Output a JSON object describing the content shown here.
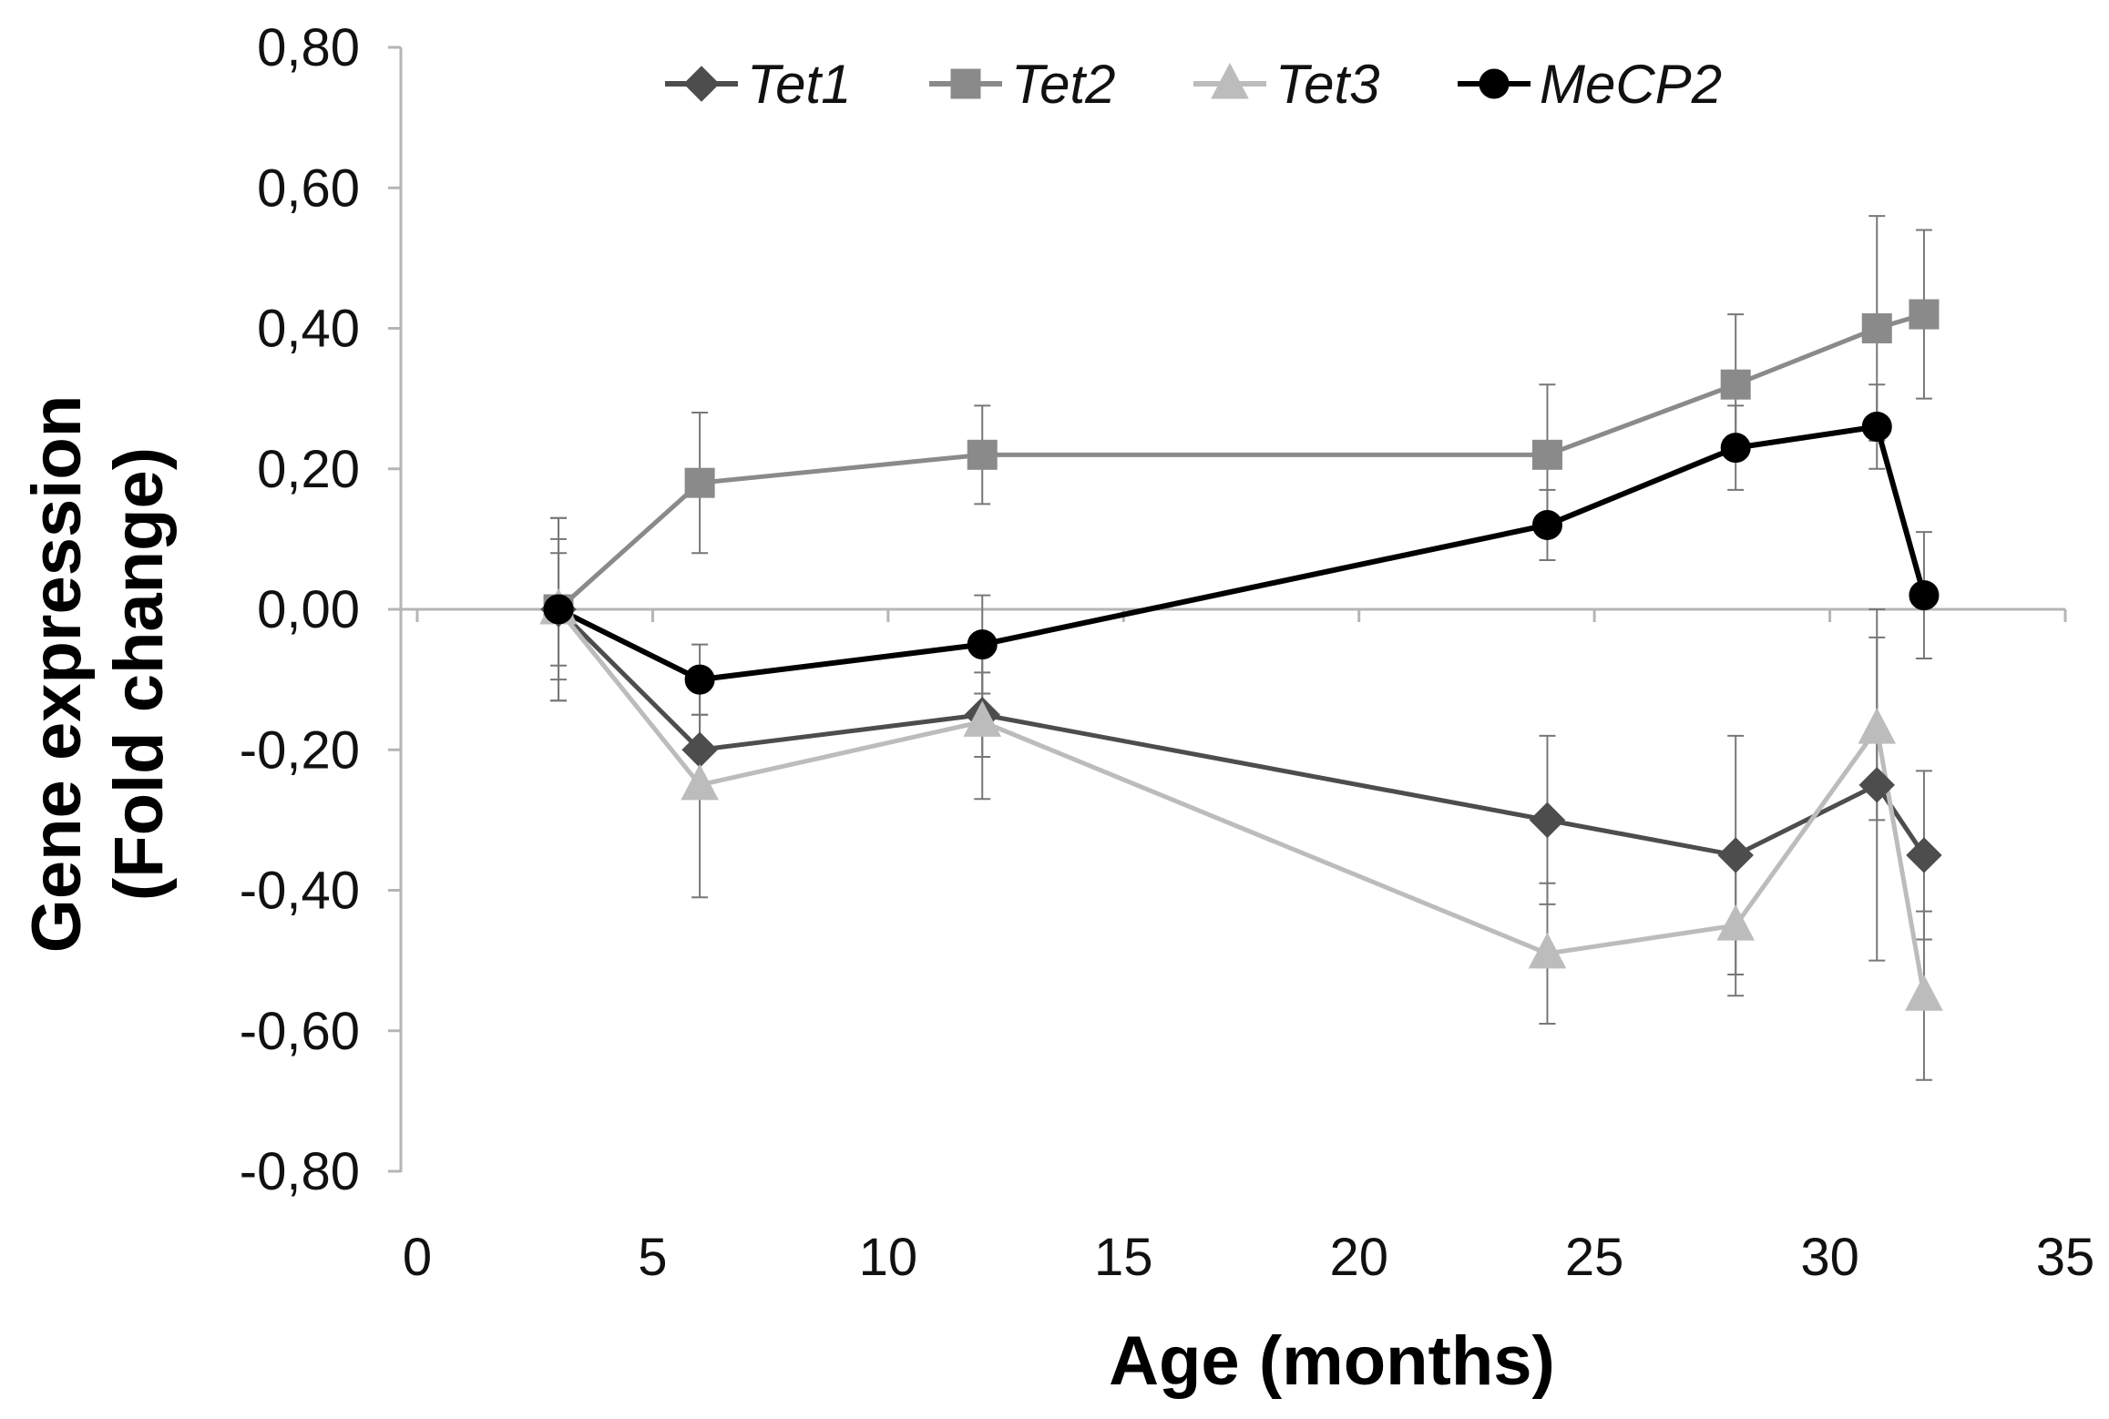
{
  "chart_data": {
    "type": "line",
    "xlabel": "Age (months)",
    "ylabel": [
      "Gene expression",
      "(Fold change)"
    ],
    "xlim": [
      0,
      35
    ],
    "ylim": [
      -0.8,
      0.8
    ],
    "xticks": [
      0,
      5,
      10,
      15,
      20,
      25,
      30,
      35
    ],
    "xtick_labels": [
      "0",
      "5",
      "10",
      "15",
      "20",
      "25",
      "30",
      "35"
    ],
    "yticks": [
      0.8,
      0.6,
      0.4,
      0.2,
      0,
      -0.2,
      -0.4,
      -0.6,
      -0.8
    ],
    "ytick_labels": [
      "0,80",
      "0,60",
      "0,40",
      "0,20",
      "0,00",
      "-0,20",
      "-0,40",
      "-0,60",
      "-0,80"
    ],
    "legend_position": "top",
    "grid": false,
    "x": [
      3,
      6,
      12,
      24,
      28,
      31,
      32
    ],
    "series": [
      {
        "name": "Tet1",
        "marker": "diamond",
        "color": "#4d4d4d",
        "values": [
          0,
          -0.2,
          -0.15,
          -0.3,
          -0.35,
          -0.25,
          -0.35
        ],
        "errors": [
          0.1,
          0.05,
          0.06,
          0.12,
          0.17,
          0.25,
          0.12
        ]
      },
      {
        "name": "Tet2",
        "marker": "square",
        "color": "#8a8a8a",
        "values": [
          0,
          0.18,
          0.22,
          0.22,
          0.32,
          0.4,
          0.42
        ],
        "errors": [
          0.08,
          0.1,
          0.07,
          0.1,
          0.1,
          0.16,
          0.12
        ]
      },
      {
        "name": "Tet3",
        "marker": "triangle",
        "color": "#bcbcbc",
        "values": [
          0,
          -0.25,
          -0.16,
          -0.49,
          -0.45,
          -0.17,
          -0.55
        ],
        "errors": [
          0.13,
          0.16,
          0.11,
          0.1,
          0.1,
          0.13,
          0.12
        ]
      },
      {
        "name": "MeCP2",
        "marker": "circle",
        "color": "#000000",
        "values": [
          0,
          -0.1,
          -0.05,
          0.12,
          0.23,
          0.26,
          0.02
        ],
        "errors": [
          0.13,
          0.05,
          0.07,
          0.05,
          0.06,
          0.06,
          0.09
        ]
      }
    ]
  }
}
